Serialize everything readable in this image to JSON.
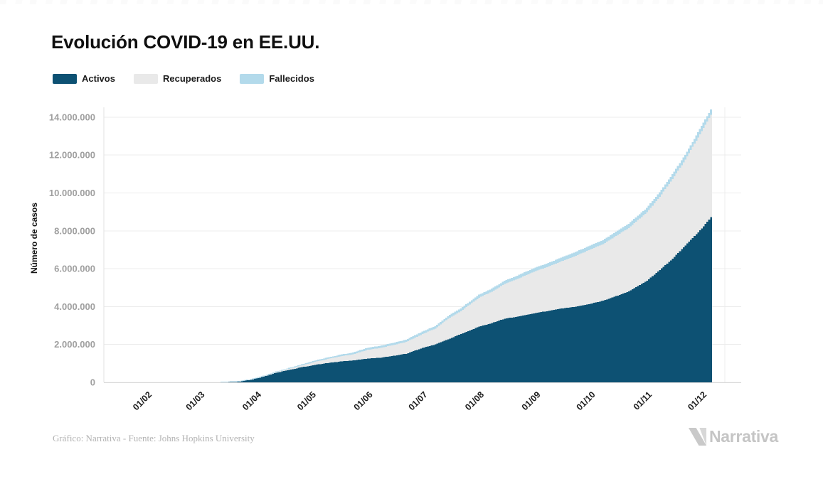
{
  "footer": {
    "credit": "Gráfico: Narrativa - Fuente: Johns Hopkins University",
    "brand": "Narrativa",
    "brand_color": "#c5c5c5"
  },
  "chart_data": {
    "type": "area",
    "stacked": true,
    "title": "Evolución COVID-19 en EE.UU.",
    "ylabel": "Número de casos",
    "xlabel": "",
    "grid": "horizontal",
    "legend_position": "top-left",
    "ylim": [
      0,
      14500000
    ],
    "x_range": [
      "2020-01-22",
      "2020-12-06"
    ],
    "y_ticks": [
      {
        "value": 0,
        "label": "0"
      },
      {
        "value": 2000000,
        "label": "2.000.000"
      },
      {
        "value": 4000000,
        "label": "4.000.000"
      },
      {
        "value": 6000000,
        "label": "6.000.000"
      },
      {
        "value": 8000000,
        "label": "8.000.000"
      },
      {
        "value": 10000000,
        "label": "10.000.000"
      },
      {
        "value": 12000000,
        "label": "12.000.000"
      },
      {
        "value": 14000000,
        "label": "14.000.000"
      }
    ],
    "x_ticks": [
      {
        "date": "2020-02-01",
        "label": "01/02"
      },
      {
        "date": "2020-03-01",
        "label": "01/03"
      },
      {
        "date": "2020-04-01",
        "label": "01/04"
      },
      {
        "date": "2020-05-01",
        "label": "01/05"
      },
      {
        "date": "2020-06-01",
        "label": "01/06"
      },
      {
        "date": "2020-07-01",
        "label": "01/07"
      },
      {
        "date": "2020-08-01",
        "label": "01/08"
      },
      {
        "date": "2020-09-01",
        "label": "01/09"
      },
      {
        "date": "2020-10-01",
        "label": "01/10"
      },
      {
        "date": "2020-11-01",
        "label": "01/11"
      },
      {
        "date": "2020-12-01",
        "label": "01/12"
      }
    ],
    "dates": [
      "2020-01-22",
      "2020-03-01",
      "2020-03-08",
      "2020-03-15",
      "2020-03-22",
      "2020-03-29",
      "2020-04-05",
      "2020-04-12",
      "2020-04-19",
      "2020-04-26",
      "2020-05-03",
      "2020-05-10",
      "2020-05-17",
      "2020-05-24",
      "2020-06-01",
      "2020-06-08",
      "2020-06-15",
      "2020-06-22",
      "2020-07-01",
      "2020-07-08",
      "2020-07-15",
      "2020-07-22",
      "2020-08-01",
      "2020-08-08",
      "2020-08-15",
      "2020-08-22",
      "2020-09-01",
      "2020-09-08",
      "2020-09-15",
      "2020-09-22",
      "2020-10-01",
      "2020-10-08",
      "2020-10-15",
      "2020-10-22",
      "2020-11-01",
      "2020-11-08",
      "2020-11-15",
      "2020-11-22",
      "2020-12-01",
      "2020-12-06"
    ],
    "series": [
      {
        "name": "Activos",
        "color": "#0d5173",
        "values": [
          0,
          70,
          500,
          3000,
          30000,
          135000,
          300000,
          510000,
          660000,
          800000,
          920000,
          1020000,
          1100000,
          1160000,
          1260000,
          1300000,
          1400000,
          1510000,
          1820000,
          2000000,
          2270000,
          2550000,
          2940000,
          3130000,
          3360000,
          3470000,
          3650000,
          3780000,
          3900000,
          3980000,
          4150000,
          4310000,
          4550000,
          4800000,
          5370000,
          5930000,
          6530000,
          7230000,
          8120000,
          8720000
        ]
      },
      {
        "name": "Recuperados",
        "color": "#e9e9e9",
        "values": [
          0,
          0,
          0,
          100,
          2000,
          5000,
          15000,
          30000,
          60000,
          100000,
          160000,
          210000,
          270000,
          320000,
          460000,
          520000,
          570000,
          620000,
          730000,
          840000,
          1090000,
          1210000,
          1530000,
          1660000,
          1830000,
          1990000,
          2230000,
          2330000,
          2490000,
          2660000,
          2870000,
          2990000,
          3180000,
          3350000,
          3610000,
          3870000,
          4210000,
          4530000,
          5150000,
          5400000
        ]
      },
      {
        "name": "Fallecidos",
        "color": "#b3daeb",
        "values": [
          0,
          10,
          300,
          2000,
          5000,
          9000,
          15000,
          22000,
          40000,
          54000,
          68000,
          79000,
          89000,
          97000,
          106000,
          111000,
          116000,
          120000,
          128000,
          132000,
          138000,
          145000,
          155000,
          162000,
          169000,
          176000,
          187000,
          190000,
          196000,
          201000,
          208000,
          212000,
          218000,
          223000,
          231000,
          238000,
          246000,
          255000,
          268000,
          281000
        ]
      }
    ]
  }
}
